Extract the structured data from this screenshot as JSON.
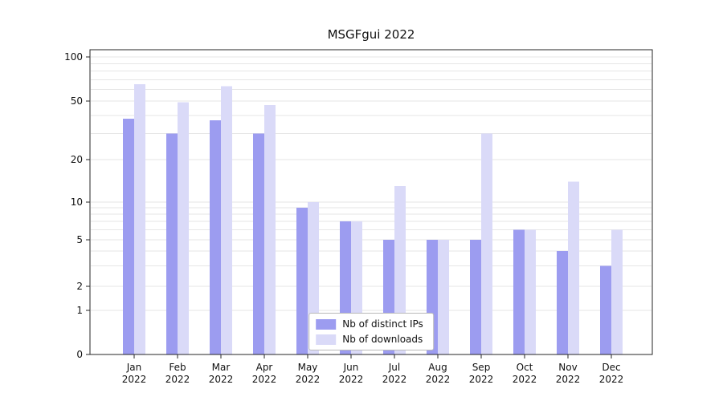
{
  "page": {
    "title": "MSGFgui 2022"
  },
  "chart_data": {
    "type": "bar",
    "title": "MSGFgui 2022",
    "x_axis": {
      "categories": [
        "Jan",
        "Feb",
        "Mar",
        "Apr",
        "May",
        "Jun",
        "Jul",
        "Aug",
        "Sep",
        "Oct",
        "Nov",
        "Dec"
      ],
      "year_label": "2022"
    },
    "y_axis": {
      "scale": "symlog",
      "ticks": [
        0,
        1,
        2,
        5,
        10,
        20,
        50,
        100
      ],
      "range": [
        0,
        110
      ],
      "minor_gridlines": [
        1,
        2,
        3,
        4,
        5,
        6,
        7,
        8,
        9,
        10,
        20,
        30,
        40,
        50,
        60,
        70,
        80,
        90,
        100
      ]
    },
    "series": [
      {
        "name": "Nb of distinct IPs",
        "color": "#9c9cf0",
        "values": [
          38,
          30,
          37,
          30,
          9,
          7,
          5,
          5,
          5,
          6,
          4,
          3
        ]
      },
      {
        "name": "Nb of downloads",
        "color": "#dadaf8",
        "values": [
          65,
          49,
          63,
          47,
          10,
          7,
          13,
          5,
          30,
          6,
          14,
          6
        ]
      }
    ],
    "legend": {
      "position": "lower center inside",
      "entries": [
        "Nb of distinct IPs",
        "Nb of downloads"
      ]
    },
    "grid": true,
    "background": "#ffffff"
  }
}
